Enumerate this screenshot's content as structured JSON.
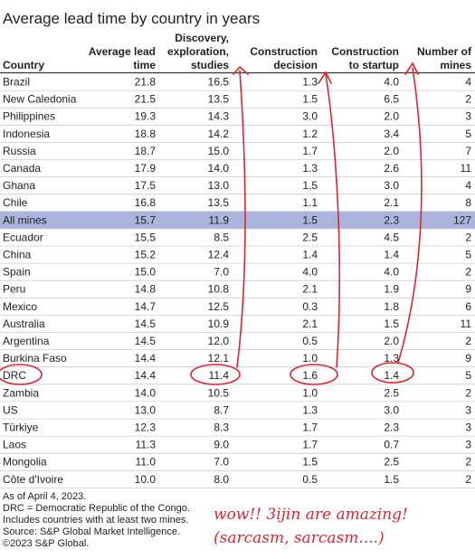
{
  "title": "Average lead time by country in years",
  "table": {
    "columns": [
      [
        "Country"
      ],
      [
        "Average lead",
        "time"
      ],
      [
        "Discovery,",
        "exploration,",
        "studies"
      ],
      [
        "Construction",
        "decision"
      ],
      [
        "Construction",
        "to startup"
      ],
      [
        "Number of",
        "mines"
      ]
    ],
    "rows": [
      [
        "Brazil",
        "21.8",
        "16.5",
        "1.3",
        "4.0",
        "4"
      ],
      [
        "New Caledonia",
        "21.5",
        "13.5",
        "1.5",
        "6.5",
        "2"
      ],
      [
        "Philippines",
        "19.3",
        "14.3",
        "3.0",
        "2.0",
        "3"
      ],
      [
        "Indonesia",
        "18.8",
        "14.2",
        "1.2",
        "3.4",
        "5"
      ],
      [
        "Russia",
        "18.7",
        "15.0",
        "1.7",
        "2.0",
        "7"
      ],
      [
        "Canada",
        "17.9",
        "14.0",
        "1.3",
        "2.6",
        "11"
      ],
      [
        "Ghana",
        "17.5",
        "13.0",
        "1.5",
        "3.0",
        "4"
      ],
      [
        "Chile",
        "16.8",
        "13.5",
        "1.1",
        "2.1",
        "8"
      ],
      [
        "All mines",
        "15.7",
        "11.9",
        "1.5",
        "2.3",
        "127"
      ],
      [
        "Ecuador",
        "15.5",
        "8.5",
        "2.5",
        "4.5",
        "2"
      ],
      [
        "China",
        "15.2",
        "12.4",
        "1.4",
        "1.4",
        "5"
      ],
      [
        "Spain",
        "15.0",
        "7.0",
        "4.0",
        "4.0",
        "2"
      ],
      [
        "Peru",
        "14.8",
        "10.8",
        "2.1",
        "1.9",
        "9"
      ],
      [
        "Mexico",
        "14.7",
        "12.5",
        "0.3",
        "1.8",
        "6"
      ],
      [
        "Australia",
        "14.5",
        "10.9",
        "2.1",
        "1.5",
        "11"
      ],
      [
        "Argentina",
        "14.5",
        "12.0",
        "0.5",
        "2.0",
        "2"
      ],
      [
        "Burkina Faso",
        "14.4",
        "12.1",
        "1.0",
        "1.3",
        "9"
      ],
      [
        "DRC",
        "14.4",
        "11.4",
        "1.6",
        "1.4",
        "5"
      ],
      [
        "Zambia",
        "14.0",
        "10.5",
        "1.0",
        "2.5",
        "2"
      ],
      [
        "US",
        "13.0",
        "8.7",
        "1.3",
        "3.0",
        "3"
      ],
      [
        "Türkiye",
        "12.3",
        "8.3",
        "1.7",
        "2.3",
        "3"
      ],
      [
        "Laos",
        "11.3",
        "9.0",
        "1.7",
        "0.7",
        "3"
      ],
      [
        "Mongolia",
        "11.0",
        "7.0",
        "1.5",
        "2.5",
        "2"
      ],
      [
        "Côte d'Ivoire",
        "10.0",
        "8.0",
        "0.5",
        "1.5",
        "2"
      ]
    ]
  },
  "footnotes": [
    "As of April 4, 2023.",
    "DRC = Democratic Republic of the Congo.",
    "Includes countries with at least two mines.",
    "Source: S&P Global Market Intelligence.",
    "©2023 S&P Global."
  ],
  "annotation": [
    "wow!! 3ijin are amazing!",
    "(sarcasm, sarcasm....)"
  ]
}
